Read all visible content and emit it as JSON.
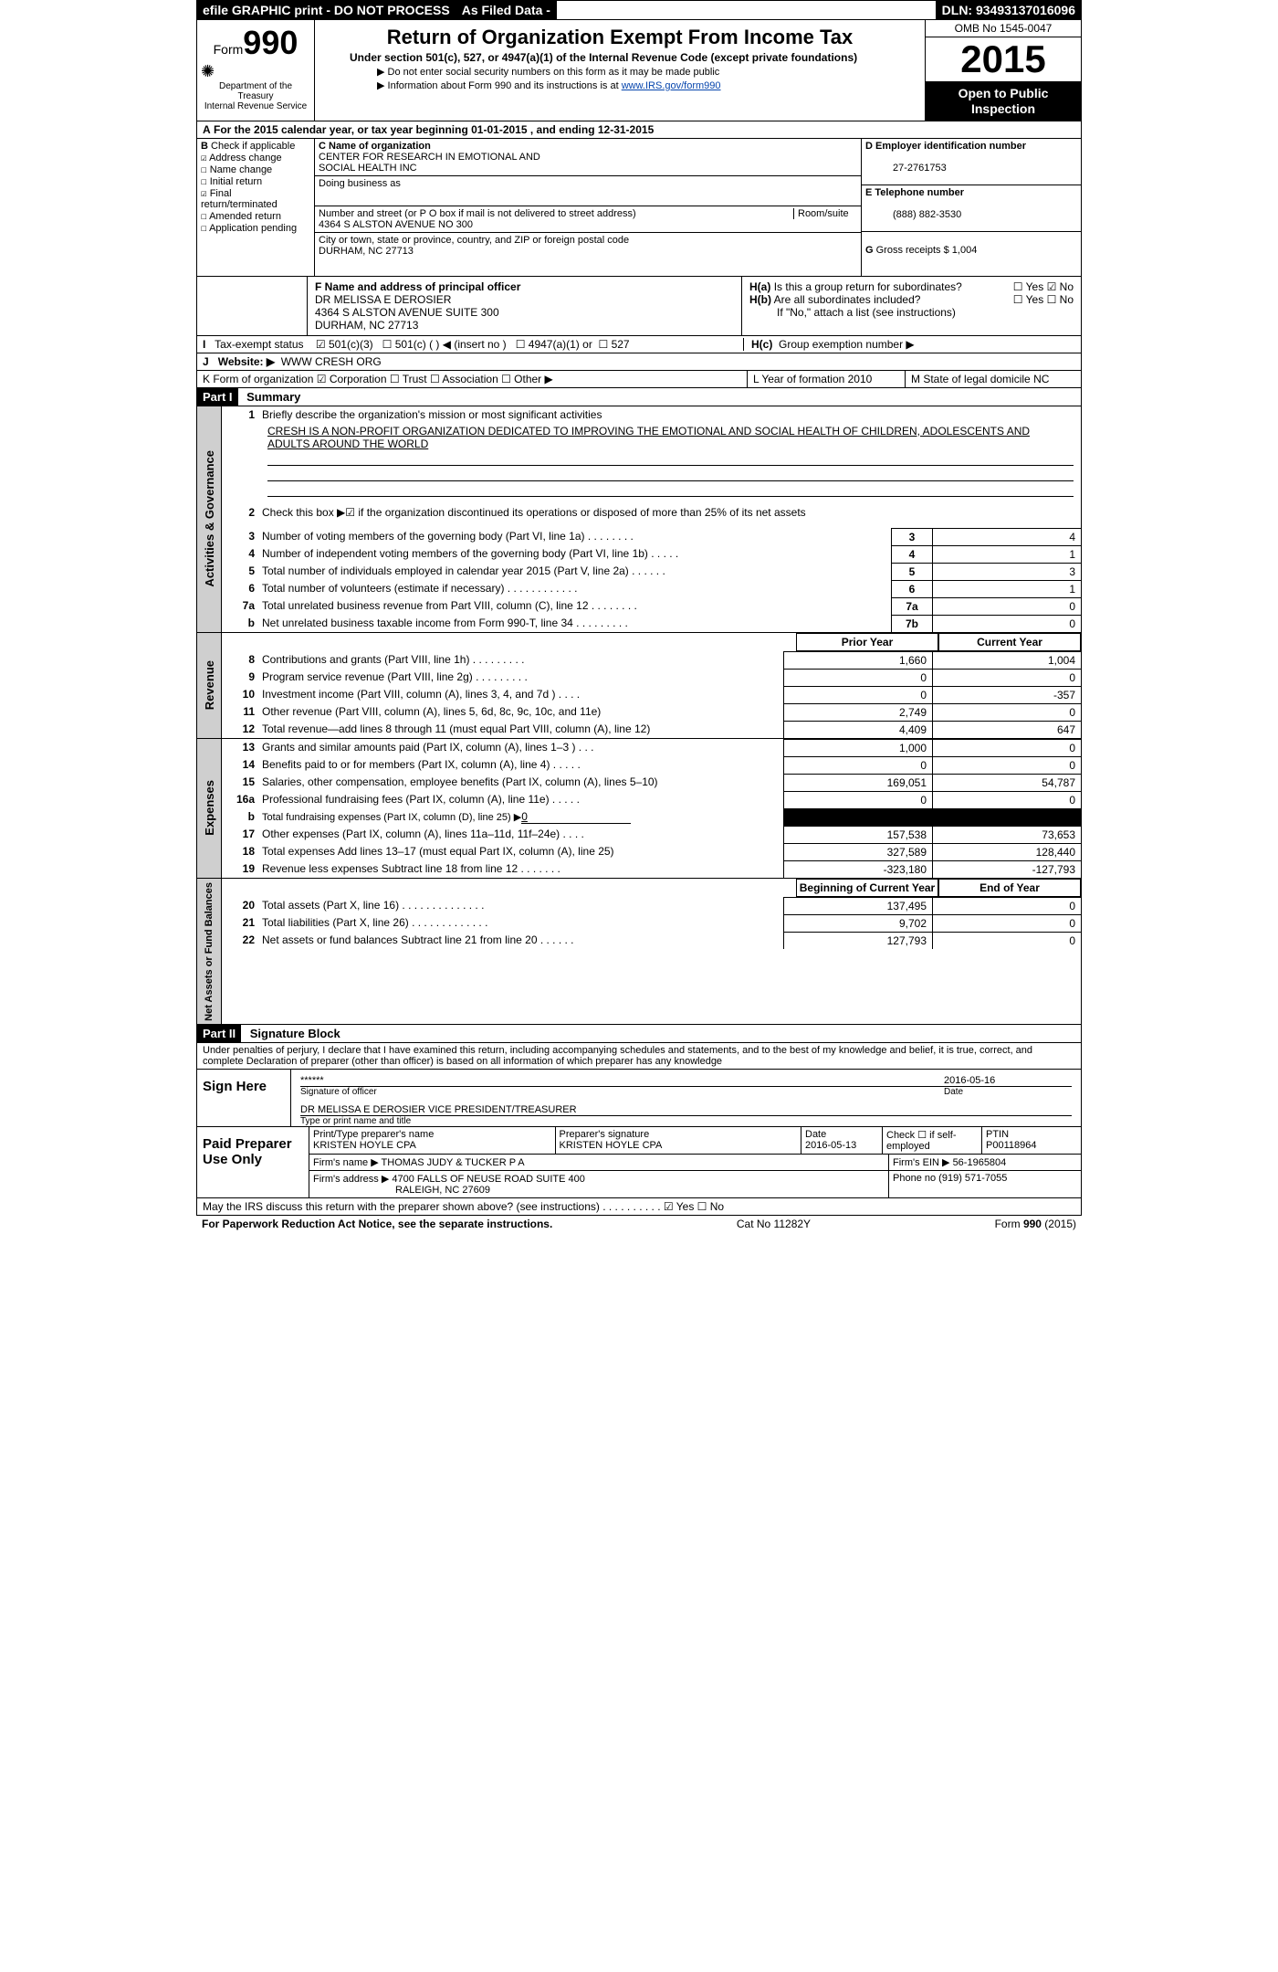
{
  "topbar": {
    "efile": "efile GRAPHIC print - DO NOT PROCESS",
    "asfiled": "As Filed Data -",
    "dln_label": "DLN:",
    "dln": "93493137016096"
  },
  "header": {
    "form_word": "Form",
    "form_num": "990",
    "dept1": "Department of the Treasury",
    "dept2": "Internal Revenue Service",
    "title": "Return of Organization Exempt From Income Tax",
    "subtitle": "Under section 501(c), 527, or 4947(a)(1) of the Internal Revenue Code (except private foundations)",
    "note1": "▶ Do not enter social security numbers on this form as it may be made public",
    "note2_pre": "▶ Information about Form 990 and its instructions is at ",
    "note2_link": "www.IRS.gov/form990",
    "omb": "OMB No 1545-0047",
    "year": "2015",
    "open1": "Open to Public",
    "open2": "Inspection"
  },
  "rowA": {
    "label_a": "A",
    "text": "For the 2015 calendar year, or tax year beginning 01-01-2015",
    "text2": ", and ending 12-31-2015"
  },
  "B": {
    "hdr": "B",
    "intro": "Check if applicable",
    "opts": [
      {
        "mark": "☑",
        "label": "Address change"
      },
      {
        "mark": "☐",
        "label": "Name change"
      },
      {
        "mark": "☐",
        "label": "Initial return"
      },
      {
        "mark": "☑",
        "label": "Final return/terminated"
      },
      {
        "mark": "☐",
        "label": "Amended return"
      },
      {
        "mark": "☐",
        "label": "Application pending"
      }
    ]
  },
  "C": {
    "name_label": "C Name of organization",
    "name1": "CENTER FOR RESEARCH IN EMOTIONAL AND",
    "name2": "SOCIAL HEALTH INC",
    "dba_label": "Doing business as",
    "addr_label": "Number and street (or P O  box if mail is not delivered to street address)",
    "room_label": "Room/suite",
    "addr": "4364 S ALSTON AVENUE NO 300",
    "city_label": "City or town, state or province, country, and ZIP or foreign postal code",
    "city": "DURHAM, NC  27713"
  },
  "D": {
    "label": "D Employer identification number",
    "ein": "27-2761753",
    "E_label": "E Telephone number",
    "phone": "(888) 882-3530",
    "G_label": "G",
    "G_text": "Gross receipts $",
    "G_val": "1,004"
  },
  "F": {
    "label": "F    Name and address of principal officer",
    "l1": "DR MELISSA E DEROSIER",
    "l2": "4364 S ALSTON AVENUE SUITE 300",
    "l3": "DURHAM, NC  27713"
  },
  "H": {
    "a_label": "H(a)",
    "a_text": "Is this a group return for subordinates?",
    "a_yes": "☐ Yes ☑ No",
    "b_label": "H(b)",
    "b_text": "Are all subordinates included?",
    "b_yes": "☐ Yes ☐ No",
    "note": "If \"No,\" attach a list  (see instructions)",
    "c_label": "H(c)",
    "c_text": "Group exemption number ▶"
  },
  "I": {
    "label": "I",
    "text": "Tax-exempt status",
    "o1": "☑  501(c)(3)",
    "o2": "☐  501(c) (   ) ◀ (insert no )",
    "o3": "☐  4947(a)(1) or",
    "o4": "☐  527"
  },
  "J": {
    "label": "J",
    "text": "Website: ▶",
    "val": "WWW CRESH ORG"
  },
  "K": {
    "text": "K Form of organization  ☑ Corporation ☐ Trust ☐ Association ☐ Other ▶",
    "L": "L Year of formation  2010",
    "M": "M State of legal domicile  NC"
  },
  "partI": {
    "hdr": "Part I",
    "title": "Summary",
    "l1_label": "1",
    "l1_text": "Briefly describe the organization's mission or most significant activities",
    "mission": "CRESH IS A NON-PROFIT ORGANIZATION DEDICATED TO IMPROVING THE EMOTIONAL AND SOCIAL HEALTH OF CHILDREN, ADOLESCENTS AND ADULTS AROUND THE WORLD",
    "l2_label": "2",
    "l2_text": "Check this box ▶☑ if the organization discontinued its operations or disposed of more than 25% of its net assets",
    "rows_top": [
      {
        "n": "3",
        "t": "Number of voting members of the governing body (Part VI, line 1a)   .    .    .    .    .    .    .    .",
        "c": "3",
        "v": "4"
      },
      {
        "n": "4",
        "t": "Number of independent voting members of the governing body (Part VI, line 1b)   .    .    .    .    .",
        "c": "4",
        "v": "1"
      },
      {
        "n": "5",
        "t": "Total number of individuals employed in calendar year 2015 (Part V, line 2a)   .    .    .    .    .    .",
        "c": "5",
        "v": "3"
      },
      {
        "n": "6",
        "t": "Total number of volunteers (estimate if necessary)   .    .    .    .    .    .    .    .    .    .    .    .",
        "c": "6",
        "v": "1"
      },
      {
        "n": "7a",
        "t": "Total unrelated business revenue from Part VIII, column (C), line 12   .    .    .    .    .    .    .    .",
        "c": "7a",
        "v": "0"
      },
      {
        "n": "b",
        "t": "Net unrelated business taxable income from Form 990-T, line 34   .    .    .    .    .    .    .    .    .",
        "c": "7b",
        "v": "0"
      }
    ],
    "col_prior": "Prior Year",
    "col_current": "Current Year",
    "rev": [
      {
        "n": "8",
        "t": "Contributions and grants (Part VIII, line 1h)   .    .    .    .    .    .    .    .    .",
        "p": "1,660",
        "c": "1,004"
      },
      {
        "n": "9",
        "t": "Program service revenue (Part VIII, line 2g)   .    .    .    .    .    .    .    .    .",
        "p": "0",
        "c": "0"
      },
      {
        "n": "10",
        "t": "Investment income (Part VIII, column (A), lines 3, 4, and 7d )   .    .    .    .",
        "p": "0",
        "c": "-357"
      },
      {
        "n": "11",
        "t": "Other revenue (Part VIII, column (A), lines 5, 6d, 8c, 9c, 10c, and 11e)",
        "p": "2,749",
        "c": "0"
      },
      {
        "n": "12",
        "t": "Total revenue—add lines 8 through 11 (must equal Part VIII, column (A), line 12)",
        "p": "4,409",
        "c": "647"
      }
    ],
    "exp": [
      {
        "n": "13",
        "t": "Grants and similar amounts paid (Part IX, column (A), lines 1–3 )   .    .    .",
        "p": "1,000",
        "c": "0"
      },
      {
        "n": "14",
        "t": "Benefits paid to or for members (Part IX, column (A), line 4)   .    .    .    .    .",
        "p": "0",
        "c": "0"
      },
      {
        "n": "15",
        "t": "Salaries, other compensation, employee benefits (Part IX, column (A), lines 5–10)",
        "p": "169,051",
        "c": "54,787"
      },
      {
        "n": "16a",
        "t": "Professional fundraising fees (Part IX, column (A), line 11e)   .    .    .    .    .",
        "p": "0",
        "c": "0"
      },
      {
        "n": "b",
        "t": "Total fundraising expenses (Part IX, column (D), line 25) ▶",
        "p": "__BLACK__",
        "c": "__BLACK__",
        "extra": "0"
      },
      {
        "n": "17",
        "t": "Other expenses (Part IX, column (A), lines 11a–11d, 11f–24e)   .    .    .    .",
        "p": "157,538",
        "c": "73,653"
      },
      {
        "n": "18",
        "t": "Total expenses  Add lines 13–17 (must equal Part IX, column (A), line 25)",
        "p": "327,589",
        "c": "128,440"
      },
      {
        "n": "19",
        "t": "Revenue less expenses  Subtract line 18 from line 12   .    .    .    .    .    .    .",
        "p": "-323,180",
        "c": "-127,793"
      }
    ],
    "col_begin": "Beginning of Current Year",
    "col_end": "End of Year",
    "net": [
      {
        "n": "20",
        "t": "Total assets (Part X, line 16)   .    .    .    .    .    .    .    .    .    .    .    .    .    .",
        "p": "137,495",
        "c": "0"
      },
      {
        "n": "21",
        "t": "Total liabilities (Part X, line 26)   .    .    .    .    .    .    .    .    .    .    .    .    .",
        "p": "9,702",
        "c": "0"
      },
      {
        "n": "22",
        "t": "Net assets or fund balances  Subtract line 21 from line 20   .    .    .    .    .    .",
        "p": "127,793",
        "c": "0"
      }
    ],
    "vlab_gov": "Activities & Governance",
    "vlab_rev": "Revenue",
    "vlab_exp": "Expenses",
    "vlab_net": "Net Assets or Fund Balances"
  },
  "partII": {
    "hdr": "Part II",
    "title": "Signature Block",
    "perjury": "Under penalties of perjury, I declare that I have examined this return, including accompanying schedules and statements, and to the best of my knowledge and belief, it is true, correct, and complete  Declaration of preparer (other than officer) is based on all information of which preparer has any knowledge",
    "sign_here": "Sign Here",
    "stars": "******",
    "sig_of_officer": "Signature of officer",
    "sig_date": "2016-05-16",
    "date_label": "Date",
    "officer": "DR MELISSA E DEROSIER  VICE PRESIDENT/TREASURER",
    "type_label": "Type or print name and title",
    "paid": "Paid Preparer Use Only",
    "prep_name_label": "Print/Type preparer's name",
    "prep_name": "KRISTEN HOYLE CPA",
    "prep_sig_label": "Preparer's signature",
    "prep_sig": "KRISTEN HOYLE CPA",
    "prep_date_label": "Date",
    "prep_date": "2016-05-13",
    "check_label": "Check ☐ if self-employed",
    "ptin_label": "PTIN",
    "ptin": "P00118964",
    "firm_name_label": "Firm's name    ▶",
    "firm_name": "THOMAS JUDY & TUCKER P A",
    "firm_ein_label": "Firm's EIN ▶",
    "firm_ein": "56-1965804",
    "firm_addr_label": "Firm's address ▶",
    "firm_addr1": "4700 FALLS OF NEUSE ROAD SUITE 400",
    "firm_addr2": "RALEIGH, NC  27609",
    "firm_phone_label": "Phone no",
    "firm_phone": "(919) 571-7055",
    "may_irs": "May the IRS discuss this return with the preparer shown above? (see instructions)   .    .    .    .    .    .    .    .    .    . ☑ Yes ☐ No"
  },
  "footer": {
    "left": "For Paperwork Reduction Act Notice, see the separate instructions.",
    "mid": "Cat No  11282Y",
    "right": "Form 990 (2015)"
  }
}
